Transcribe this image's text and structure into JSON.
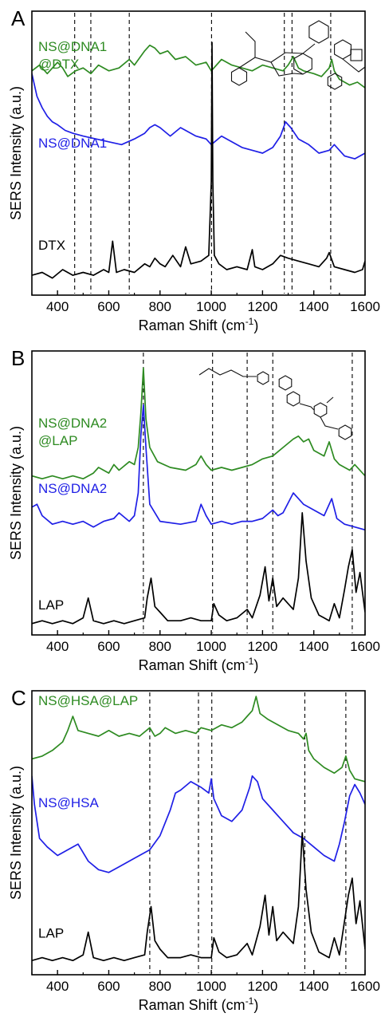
{
  "figure": {
    "colors": {
      "green": "#2e8b22",
      "blue": "#1f1fe6",
      "black": "#000000"
    }
  },
  "chart_data": [
    {
      "type": "line",
      "panel_label": "A",
      "xlabel": "Raman Shift (cm",
      "xlabel_sup": "-1",
      "xlabel_close": ")",
      "ylabel": "SERS Intensity (a.u.)",
      "xlim": [
        300,
        1600
      ],
      "ylim": [
        0,
        10
      ],
      "xticks": [
        400,
        600,
        800,
        1000,
        1200,
        1400,
        1600
      ],
      "reference_lines_x": [
        467,
        530,
        680,
        1001,
        1285,
        1315,
        1466
      ],
      "structure_icon": "docetaxel-structure-icon",
      "series": [
        {
          "name": "NS@DNA1\n@DTX",
          "color": "#2e8b22",
          "label_x": 325,
          "label_y": 8.6,
          "x": [
            300,
            330,
            360,
            400,
            420,
            440,
            470,
            500,
            530,
            560,
            600,
            640,
            680,
            700,
            740,
            760,
            780,
            800,
            830,
            860,
            900,
            940,
            980,
            1000,
            1040,
            1080,
            1120,
            1160,
            1200,
            1240,
            1280,
            1300,
            1320,
            1340,
            1360,
            1400,
            1430,
            1460,
            1470,
            1480,
            1500,
            1540,
            1570,
            1600
          ],
          "y": [
            7.9,
            8.1,
            7.8,
            8.2,
            8.0,
            7.7,
            7.9,
            8.0,
            7.8,
            8.1,
            7.9,
            8.0,
            8.3,
            8.1,
            8.6,
            8.8,
            8.7,
            8.5,
            8.6,
            8.3,
            8.4,
            8.1,
            8.2,
            7.9,
            8.3,
            8.1,
            8.0,
            7.9,
            8.1,
            8.0,
            7.9,
            8.1,
            8.4,
            8.0,
            7.9,
            7.8,
            7.7,
            8.0,
            8.3,
            7.9,
            7.6,
            7.4,
            7.5,
            7.3
          ]
        },
        {
          "name": "NS@DNA1",
          "color": "#1f1fe6",
          "label_x": 325,
          "label_y": 5.2,
          "x": [
            300,
            320,
            340,
            360,
            380,
            400,
            430,
            460,
            500,
            550,
            600,
            650,
            700,
            740,
            760,
            780,
            800,
            840,
            880,
            900,
            940,
            980,
            1000,
            1040,
            1080,
            1120,
            1160,
            1200,
            1240,
            1270,
            1290,
            1310,
            1340,
            1380,
            1420,
            1460,
            1480,
            1520,
            1560,
            1600
          ],
          "y": [
            7.8,
            7.0,
            6.6,
            6.3,
            6.1,
            6.0,
            5.8,
            5.7,
            5.6,
            5.5,
            5.4,
            5.3,
            5.5,
            5.7,
            5.9,
            6.0,
            5.9,
            5.6,
            5.9,
            5.8,
            5.6,
            5.5,
            5.3,
            5.6,
            5.4,
            5.2,
            5.1,
            5.0,
            5.2,
            5.6,
            6.1,
            5.9,
            5.5,
            5.3,
            5.0,
            5.1,
            5.3,
            4.9,
            4.8,
            5.0
          ]
        },
        {
          "name": "DTX",
          "color": "#000000",
          "label_x": 325,
          "label_y": 1.6,
          "x": [
            300,
            340,
            380,
            420,
            460,
            500,
            540,
            580,
            600,
            615,
            630,
            660,
            700,
            740,
            760,
            780,
            800,
            820,
            850,
            880,
            900,
            920,
            960,
            990,
            1000,
            1003,
            1006,
            1012,
            1030,
            1060,
            1100,
            1140,
            1160,
            1170,
            1200,
            1240,
            1270,
            1300,
            1340,
            1380,
            1420,
            1450,
            1460,
            1480,
            1520,
            1560,
            1590,
            1600
          ],
          "y": [
            0.7,
            0.8,
            0.6,
            0.9,
            0.7,
            0.8,
            0.7,
            0.9,
            0.8,
            1.9,
            0.8,
            0.9,
            0.8,
            1.1,
            1.0,
            1.3,
            1.1,
            1.0,
            1.4,
            1.0,
            1.7,
            1.1,
            1.2,
            1.4,
            4.0,
            8.9,
            4.0,
            1.4,
            1.1,
            0.9,
            1.0,
            0.9,
            1.6,
            1.0,
            0.9,
            1.1,
            1.4,
            1.3,
            1.2,
            1.1,
            1.0,
            1.3,
            1.5,
            1.0,
            0.9,
            0.8,
            0.9,
            1.2
          ]
        }
      ]
    },
    {
      "type": "line",
      "panel_label": "B",
      "xlabel": "Raman Shift (cm",
      "xlabel_sup": "-1",
      "xlabel_close": ")",
      "ylabel": "SERS Intensity (a.u.)",
      "xlim": [
        300,
        1600
      ],
      "ylim": [
        0,
        10
      ],
      "xticks": [
        400,
        600,
        800,
        1000,
        1200,
        1400,
        1600
      ],
      "reference_lines_x": [
        735,
        1005,
        1140,
        1240,
        1550
      ],
      "structure_icon": "lapatinib-structure-icon",
      "series": [
        {
          "name": "NS@DNA2\n@LAP",
          "color": "#2e8b22",
          "label_x": 325,
          "label_y": 7.3,
          "x": [
            300,
            340,
            380,
            420,
            460,
            500,
            540,
            560,
            600,
            620,
            640,
            680,
            700,
            715,
            725,
            735,
            745,
            760,
            790,
            840,
            900,
            940,
            960,
            980,
            1000,
            1040,
            1080,
            1120,
            1160,
            1200,
            1240,
            1280,
            1320,
            1340,
            1360,
            1380,
            1400,
            1440,
            1460,
            1480,
            1500,
            1540,
            1560,
            1600
          ],
          "y": [
            5.6,
            5.5,
            5.6,
            5.5,
            5.6,
            5.5,
            5.7,
            5.9,
            5.7,
            6.0,
            5.8,
            6.1,
            6.0,
            6.6,
            7.8,
            9.4,
            7.6,
            6.6,
            6.1,
            5.9,
            5.8,
            6.0,
            6.3,
            6.0,
            5.8,
            5.9,
            5.8,
            5.9,
            6.0,
            6.2,
            6.3,
            6.6,
            6.9,
            7.0,
            6.8,
            6.9,
            6.5,
            6.3,
            6.8,
            6.2,
            6.0,
            5.8,
            6.0,
            5.6
          ]
        },
        {
          "name": "NS@DNA2",
          "color": "#1f1fe6",
          "label_x": 325,
          "label_y": 5.0,
          "x": [
            300,
            320,
            340,
            380,
            420,
            460,
            500,
            540,
            580,
            620,
            640,
            680,
            700,
            715,
            725,
            735,
            745,
            760,
            800,
            880,
            940,
            960,
            980,
            1000,
            1040,
            1080,
            1120,
            1160,
            1200,
            1240,
            1260,
            1280,
            1320,
            1340,
            1360,
            1400,
            1440,
            1470,
            1490,
            1520,
            1560,
            1600
          ],
          "y": [
            4.5,
            4.6,
            4.2,
            3.9,
            4.0,
            3.9,
            4.0,
            3.8,
            4.0,
            4.1,
            4.3,
            4.0,
            4.2,
            5.0,
            7.0,
            8.1,
            6.6,
            4.6,
            4.0,
            3.9,
            4.0,
            4.6,
            4.2,
            3.9,
            4.0,
            3.9,
            4.0,
            4.0,
            4.1,
            4.4,
            4.2,
            4.3,
            5.0,
            4.8,
            4.6,
            4.4,
            4.2,
            4.8,
            4.1,
            3.9,
            3.8,
            3.7
          ]
        },
        {
          "name": "LAP",
          "color": "#000000",
          "label_x": 325,
          "label_y": 0.9,
          "x": [
            300,
            340,
            380,
            420,
            460,
            500,
            520,
            540,
            580,
            620,
            660,
            700,
            740,
            750,
            765,
            780,
            800,
            830,
            880,
            920,
            960,
            1000,
            1010,
            1030,
            1060,
            1100,
            1140,
            1160,
            1190,
            1210,
            1225,
            1240,
            1255,
            1280,
            1300,
            1320,
            1340,
            1355,
            1370,
            1390,
            1420,
            1440,
            1460,
            1480,
            1500,
            1520,
            1535,
            1550,
            1565,
            1580,
            1600
          ],
          "y": [
            0.4,
            0.5,
            0.4,
            0.5,
            0.4,
            0.6,
            1.3,
            0.5,
            0.4,
            0.5,
            0.4,
            0.5,
            0.6,
            1.3,
            2.0,
            1.0,
            0.8,
            0.5,
            0.5,
            0.6,
            0.5,
            0.5,
            1.1,
            0.7,
            0.5,
            0.6,
            0.9,
            0.6,
            1.4,
            2.4,
            1.2,
            2.0,
            1.0,
            1.3,
            1.1,
            0.9,
            2.0,
            4.3,
            2.6,
            1.3,
            0.7,
            0.6,
            0.5,
            1.1,
            0.6,
            1.6,
            2.4,
            3.0,
            1.5,
            2.2,
            0.8
          ]
        }
      ]
    },
    {
      "type": "line",
      "panel_label": "C",
      "xlabel": "Raman Shift (cm",
      "xlabel_sup": "-1",
      "xlabel_close": ")",
      "ylabel": "SERS Intensity (a.u.)",
      "xlim": [
        300,
        1600
      ],
      "ylim": [
        0,
        10
      ],
      "xticks": [
        400,
        600,
        800,
        1000,
        1200,
        1400,
        1600
      ],
      "reference_lines_x": [
        760,
        950,
        1002,
        1365,
        1525
      ],
      "structure_icon": "",
      "series": [
        {
          "name": "NS@HSA@LAP",
          "color": "#2e8b22",
          "label_x": 325,
          "label_y": 9.5,
          "x": [
            300,
            340,
            380,
            420,
            440,
            460,
            480,
            520,
            560,
            600,
            640,
            680,
            720,
            760,
            780,
            800,
            820,
            860,
            900,
            940,
            960,
            1000,
            1040,
            1080,
            1120,
            1140,
            1160,
            1175,
            1190,
            1220,
            1260,
            1300,
            1340,
            1360,
            1370,
            1380,
            1400,
            1440,
            1480,
            1510,
            1525,
            1540,
            1560,
            1600
          ],
          "y": [
            7.6,
            7.7,
            7.9,
            8.2,
            8.6,
            9.1,
            8.6,
            8.5,
            8.4,
            8.6,
            8.4,
            8.5,
            8.4,
            8.7,
            8.4,
            8.5,
            8.7,
            8.5,
            8.6,
            8.5,
            8.7,
            8.6,
            8.8,
            8.7,
            8.9,
            9.1,
            9.3,
            9.8,
            9.2,
            9.0,
            8.8,
            8.6,
            8.5,
            8.3,
            8.5,
            7.9,
            7.6,
            7.3,
            7.1,
            7.3,
            7.7,
            7.2,
            6.9,
            6.8
          ]
        },
        {
          "name": "NS@HSA",
          "color": "#1f1fe6",
          "label_x": 325,
          "label_y": 5.9,
          "x": [
            300,
            310,
            330,
            360,
            400,
            440,
            480,
            520,
            560,
            600,
            640,
            700,
            760,
            800,
            840,
            860,
            880,
            920,
            960,
            990,
            1000,
            1010,
            1040,
            1080,
            1120,
            1150,
            1160,
            1180,
            1200,
            1240,
            1280,
            1320,
            1360,
            1400,
            1440,
            1480,
            1500,
            1520,
            1540,
            1560,
            1580,
            1600
          ],
          "y": [
            7.0,
            6.0,
            4.8,
            4.5,
            4.2,
            4.4,
            4.6,
            4.0,
            3.7,
            3.6,
            3.8,
            4.1,
            4.4,
            4.9,
            5.8,
            6.4,
            6.5,
            6.8,
            6.6,
            6.4,
            6.9,
            6.2,
            5.6,
            5.4,
            5.8,
            6.6,
            7.0,
            6.8,
            6.2,
            5.8,
            5.4,
            5.0,
            4.8,
            4.5,
            4.2,
            4.0,
            4.6,
            5.4,
            6.3,
            6.7,
            6.4,
            6.0
          ]
        },
        {
          "name": "LAP",
          "color": "#000000",
          "label_x": 325,
          "label_y": 1.3,
          "x": [
            300,
            340,
            380,
            420,
            460,
            500,
            520,
            540,
            580,
            620,
            660,
            700,
            740,
            750,
            765,
            780,
            800,
            830,
            880,
            920,
            960,
            1000,
            1010,
            1030,
            1060,
            1100,
            1140,
            1160,
            1190,
            1210,
            1225,
            1240,
            1255,
            1280,
            1300,
            1320,
            1340,
            1355,
            1370,
            1390,
            1420,
            1440,
            1460,
            1480,
            1500,
            1520,
            1535,
            1550,
            1565,
            1580,
            1600
          ],
          "y": [
            0.5,
            0.6,
            0.5,
            0.6,
            0.5,
            0.7,
            1.5,
            0.6,
            0.5,
            0.6,
            0.5,
            0.6,
            0.7,
            1.5,
            2.4,
            1.2,
            0.9,
            0.6,
            0.6,
            0.7,
            0.6,
            0.6,
            1.3,
            0.8,
            0.6,
            0.7,
            1.1,
            0.7,
            1.7,
            2.8,
            1.4,
            2.4,
            1.2,
            1.5,
            1.3,
            1.1,
            2.4,
            5.0,
            3.0,
            1.5,
            0.8,
            0.7,
            0.6,
            1.3,
            0.7,
            1.9,
            2.8,
            3.4,
            1.8,
            2.6,
            0.9
          ]
        }
      ]
    }
  ]
}
